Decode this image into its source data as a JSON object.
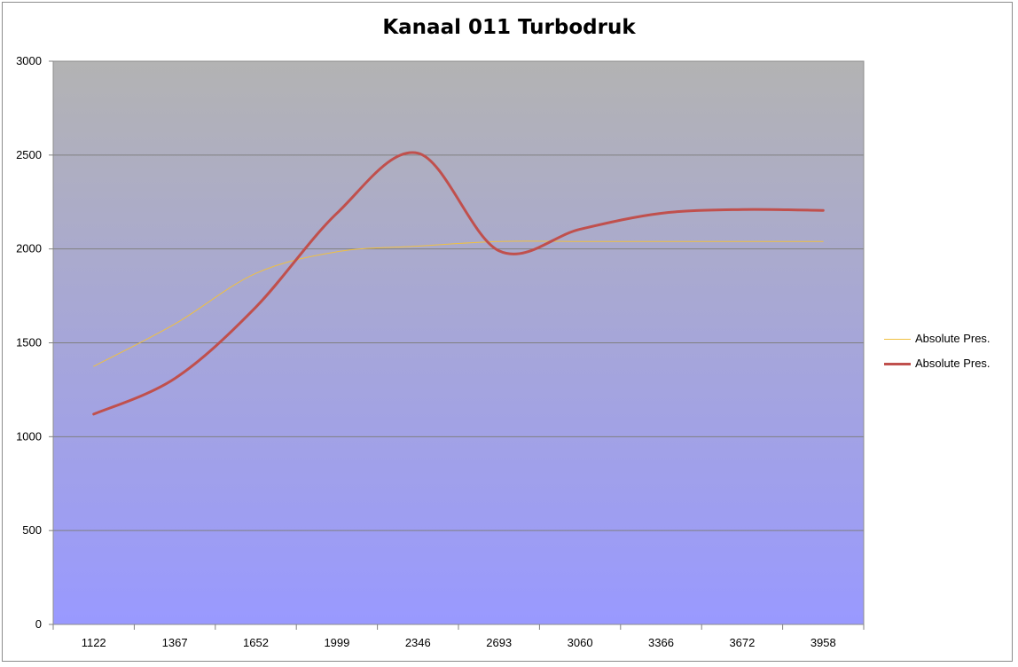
{
  "chart_data": {
    "type": "line",
    "title": "Kanaal 011 Turbodruk",
    "categories": [
      "1122",
      "1367",
      "1652",
      "1999",
      "2346",
      "2693",
      "3060",
      "3366",
      "3672",
      "3958"
    ],
    "series": [
      {
        "name": "Absolute Pres.",
        "color": "#f0c040",
        "values": [
          1375,
          1600,
          1870,
          1985,
          2015,
          2040,
          2040,
          2040,
          2040,
          2040
        ]
      },
      {
        "name": "Absolute Pres.",
        "color": "#c0504d",
        "values": [
          1120,
          1310,
          1690,
          2190,
          2510,
          1990,
          2105,
          2190,
          2210,
          2205
        ]
      }
    ],
    "ylim": [
      0,
      3000
    ],
    "yticks": [
      "0",
      "500",
      "1000",
      "1500",
      "2000",
      "2500",
      "3000"
    ],
    "grid": true,
    "legend_position": "right",
    "plot_gradient": [
      "#b3b3b3",
      "#9999ff"
    ]
  }
}
